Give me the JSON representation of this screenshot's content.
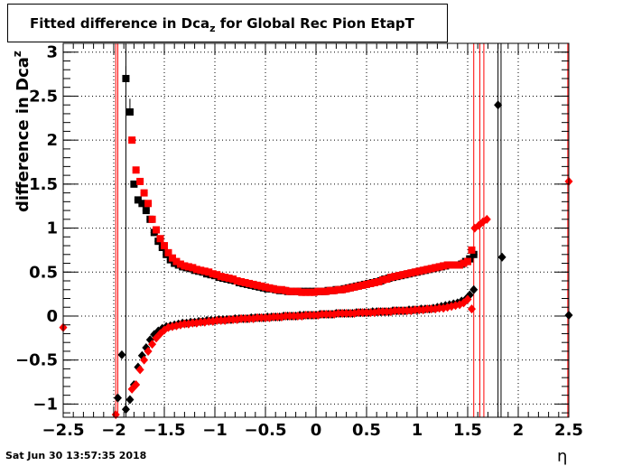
{
  "title": {
    "prefix": "Fitted difference in Dca",
    "subscript": "z",
    "suffix": " for Global Rec Pion EtapT"
  },
  "ylabel": {
    "main": "difference in Dca",
    "sup": "z"
  },
  "xlabel": "η",
  "datestamp": "Sat Jun 30 13:57:35 2018",
  "chart_data": {
    "type": "scatter",
    "title": "Fitted difference in Dca_z for Global Rec Pion EtapT",
    "xlabel": "η",
    "ylabel": "difference in Dca_z",
    "xlim": [
      -2.5,
      2.5
    ],
    "ylim": [
      -1.15,
      3.1
    ],
    "xticks": [
      -2.5,
      -2,
      -1.5,
      -1,
      -0.5,
      0,
      0.5,
      1,
      1.5,
      2,
      2.5
    ],
    "xtick_labels": [
      "−2.5",
      "−2",
      "−1.5",
      "−1",
      "−0.5",
      "0",
      "0.5",
      "1",
      "1.5",
      "2",
      "2.5"
    ],
    "yticks": [
      -1,
      -0.5,
      0,
      0.5,
      1,
      1.5,
      2,
      2.5,
      3
    ],
    "ytick_labels": [
      "−1",
      "−0.5",
      "0",
      "0.5",
      "1",
      "1.5",
      "2",
      "2.5",
      "3"
    ],
    "grid": true,
    "colors": {
      "black_series": "#000000",
      "red_series": "#ff0000"
    },
    "series": [
      {
        "marker": "square",
        "color": "#000000",
        "x": [
          -1.88,
          -1.84,
          -1.8,
          -1.76,
          -1.72,
          -1.68,
          -1.64,
          -1.6,
          -1.56,
          -1.52,
          -1.48,
          -1.44,
          -1.4,
          -1.36,
          -1.32,
          -1.28,
          -1.24,
          -1.2,
          -1.16,
          -1.12,
          -1.08,
          -1.04,
          -1.0,
          -0.96,
          -0.92,
          -0.88,
          -0.84,
          -0.8,
          -0.76,
          -0.72,
          -0.68,
          -0.64,
          -0.6,
          -0.56,
          -0.52,
          -0.48,
          -0.44,
          -0.4,
          -0.36,
          -0.32,
          -0.28,
          -0.24,
          -0.2,
          -0.16,
          -0.12,
          -0.08,
          -0.04,
          0.0,
          0.04,
          0.08,
          0.12,
          0.16,
          0.2,
          0.24,
          0.28,
          0.32,
          0.36,
          0.4,
          0.44,
          0.48,
          0.52,
          0.56,
          0.6,
          0.64,
          0.68,
          0.72,
          0.76,
          0.8,
          0.84,
          0.88,
          0.92,
          0.96,
          1.0,
          1.04,
          1.08,
          1.12,
          1.16,
          1.2,
          1.24,
          1.28,
          1.32,
          1.36,
          1.4,
          1.44,
          1.48,
          1.52,
          1.56
        ],
        "y": [
          2.7,
          2.32,
          1.5,
          1.32,
          1.28,
          1.2,
          1.1,
          0.95,
          0.85,
          0.78,
          0.7,
          0.64,
          0.6,
          0.58,
          0.56,
          0.55,
          0.54,
          0.52,
          0.51,
          0.5,
          0.48,
          0.47,
          0.46,
          0.44,
          0.43,
          0.42,
          0.41,
          0.4,
          0.38,
          0.37,
          0.36,
          0.35,
          0.34,
          0.33,
          0.32,
          0.31,
          0.31,
          0.3,
          0.29,
          0.29,
          0.28,
          0.28,
          0.28,
          0.28,
          0.28,
          0.28,
          0.28,
          0.28,
          0.28,
          0.28,
          0.29,
          0.29,
          0.3,
          0.3,
          0.31,
          0.32,
          0.33,
          0.34,
          0.35,
          0.36,
          0.37,
          0.38,
          0.39,
          0.4,
          0.42,
          0.43,
          0.44,
          0.45,
          0.46,
          0.47,
          0.48,
          0.49,
          0.5,
          0.51,
          0.52,
          0.53,
          0.54,
          0.55,
          0.56,
          0.57,
          0.58,
          0.58,
          0.58,
          0.59,
          0.62,
          0.65,
          0.7
        ],
        "yerr_high": [
          2.84,
          2.47,
          null,
          null,
          null,
          null,
          null,
          null,
          null,
          null,
          null,
          null,
          null,
          null,
          null,
          null,
          null,
          null,
          null,
          null,
          null,
          null,
          null,
          null,
          null,
          null,
          null,
          null,
          null,
          null,
          null,
          null,
          null,
          null,
          null,
          null,
          null,
          null,
          null,
          null,
          null,
          null,
          null,
          null,
          null,
          null,
          null,
          null,
          null,
          null,
          null,
          null,
          null,
          null,
          null,
          null,
          null,
          null,
          null,
          null,
          null,
          null,
          null,
          null,
          null,
          null,
          null,
          null,
          null,
          null,
          null,
          null,
          null,
          null,
          null,
          null,
          null,
          null,
          null,
          null,
          null,
          null,
          null,
          null,
          null,
          null,
          null
        ]
      },
      {
        "marker": "square",
        "color": "#ff0000",
        "x": [
          -1.82,
          -1.78,
          -1.74,
          -1.7,
          -1.66,
          -1.62,
          -1.58,
          -1.54,
          -1.5,
          -1.46,
          -1.42,
          -1.38,
          -1.34,
          -1.3,
          -1.26,
          -1.22,
          -1.18,
          -1.14,
          -1.1,
          -1.06,
          -1.02,
          -0.98,
          -0.94,
          -0.9,
          -0.86,
          -0.82,
          -0.78,
          -0.74,
          -0.7,
          -0.66,
          -0.62,
          -0.58,
          -0.54,
          -0.5,
          -0.46,
          -0.42,
          -0.38,
          -0.34,
          -0.3,
          -0.26,
          -0.22,
          -0.18,
          -0.14,
          -0.1,
          -0.06,
          -0.02,
          0.02,
          0.06,
          0.1,
          0.14,
          0.18,
          0.22,
          0.26,
          0.3,
          0.34,
          0.38,
          0.42,
          0.46,
          0.5,
          0.54,
          0.58,
          0.62,
          0.66,
          0.7,
          0.74,
          0.78,
          0.82,
          0.86,
          0.9,
          0.94,
          0.98,
          1.02,
          1.06,
          1.1,
          1.14,
          1.18,
          1.22,
          1.26,
          1.3,
          1.34,
          1.38,
          1.42,
          1.46,
          1.5,
          1.54
        ],
        "y": [
          2.0,
          1.66,
          1.53,
          1.4,
          1.28,
          1.1,
          0.98,
          0.88,
          0.8,
          0.72,
          0.66,
          0.62,
          0.59,
          0.57,
          0.56,
          0.55,
          0.53,
          0.52,
          0.51,
          0.5,
          0.48,
          0.47,
          0.45,
          0.44,
          0.43,
          0.42,
          0.4,
          0.39,
          0.38,
          0.37,
          0.36,
          0.35,
          0.34,
          0.33,
          0.32,
          0.31,
          0.3,
          0.3,
          0.29,
          0.28,
          0.28,
          0.28,
          0.27,
          0.27,
          0.27,
          0.27,
          0.28,
          0.28,
          0.28,
          0.29,
          0.29,
          0.3,
          0.3,
          0.31,
          0.32,
          0.33,
          0.34,
          0.35,
          0.36,
          0.37,
          0.38,
          0.39,
          0.41,
          0.42,
          0.44,
          0.45,
          0.46,
          0.47,
          0.48,
          0.49,
          0.5,
          0.51,
          0.52,
          0.53,
          0.54,
          0.55,
          0.56,
          0.57,
          0.58,
          0.58,
          0.58,
          0.58,
          0.6,
          0.62,
          0.75
        ]
      },
      {
        "marker": "diamond",
        "color": "#000000",
        "x": [
          -1.96,
          -1.92,
          -1.88,
          -1.84,
          -1.8,
          -1.76,
          -1.72,
          -1.68,
          -1.64,
          -1.6,
          -1.56,
          -1.52,
          -1.48,
          -1.44,
          -1.4,
          -1.36,
          -1.32,
          -1.28,
          -1.24,
          -1.2,
          -1.16,
          -1.12,
          -1.08,
          -1.04,
          -1.0,
          -0.96,
          -0.92,
          -0.88,
          -0.84,
          -0.8,
          -0.76,
          -0.72,
          -0.68,
          -0.64,
          -0.6,
          -0.56,
          -0.52,
          -0.48,
          -0.44,
          -0.4,
          -0.36,
          -0.32,
          -0.28,
          -0.24,
          -0.2,
          -0.16,
          -0.12,
          -0.08,
          -0.04,
          0.0,
          0.04,
          0.08,
          0.12,
          0.16,
          0.2,
          0.24,
          0.28,
          0.32,
          0.36,
          0.4,
          0.44,
          0.48,
          0.52,
          0.56,
          0.6,
          0.64,
          0.68,
          0.72,
          0.76,
          0.8,
          0.84,
          0.88,
          0.92,
          0.96,
          1.0,
          1.04,
          1.08,
          1.12,
          1.16,
          1.2,
          1.24,
          1.28,
          1.32,
          1.36,
          1.4,
          1.44,
          1.48,
          1.52,
          1.56,
          1.8,
          1.84,
          2.5
        ],
        "y": [
          -0.93,
          -0.44,
          -1.06,
          -0.95,
          -0.78,
          -0.58,
          -0.45,
          -0.36,
          -0.27,
          -0.21,
          -0.17,
          -0.14,
          -0.12,
          -0.11,
          -0.1,
          -0.09,
          -0.08,
          -0.08,
          -0.07,
          -0.07,
          -0.06,
          -0.06,
          -0.05,
          -0.05,
          -0.05,
          -0.04,
          -0.04,
          -0.04,
          -0.04,
          -0.03,
          -0.03,
          -0.03,
          -0.03,
          -0.02,
          -0.02,
          -0.02,
          -0.02,
          -0.01,
          -0.01,
          -0.01,
          -0.01,
          0.0,
          0.0,
          0.0,
          0.0,
          0.01,
          0.01,
          0.01,
          0.01,
          0.01,
          0.02,
          0.02,
          0.02,
          0.02,
          0.03,
          0.03,
          0.03,
          0.03,
          0.03,
          0.04,
          0.04,
          0.04,
          0.04,
          0.05,
          0.05,
          0.05,
          0.05,
          0.05,
          0.06,
          0.06,
          0.06,
          0.06,
          0.07,
          0.07,
          0.07,
          0.08,
          0.08,
          0.08,
          0.09,
          0.1,
          0.11,
          0.12,
          0.13,
          0.14,
          0.15,
          0.17,
          0.19,
          0.24,
          0.3,
          2.4,
          0.67,
          0.01
        ]
      },
      {
        "marker": "diamond",
        "color": "#ff0000",
        "x": [
          -2.5,
          -1.98,
          -1.82,
          -1.78,
          -1.74,
          -1.7,
          -1.66,
          -1.62,
          -1.58,
          -1.54,
          -1.5,
          -1.46,
          -1.42,
          -1.38,
          -1.34,
          -1.3,
          -1.26,
          -1.22,
          -1.18,
          -1.14,
          -1.1,
          -1.06,
          -1.02,
          -0.98,
          -0.94,
          -0.9,
          -0.86,
          -0.82,
          -0.78,
          -0.74,
          -0.7,
          -0.66,
          -0.62,
          -0.58,
          -0.54,
          -0.5,
          -0.46,
          -0.42,
          -0.38,
          -0.34,
          -0.3,
          -0.26,
          -0.22,
          -0.18,
          -0.14,
          -0.1,
          -0.06,
          -0.02,
          0.02,
          0.06,
          0.1,
          0.14,
          0.18,
          0.22,
          0.26,
          0.3,
          0.34,
          0.38,
          0.42,
          0.46,
          0.5,
          0.54,
          0.58,
          0.62,
          0.66,
          0.7,
          0.74,
          0.78,
          0.82,
          0.86,
          0.9,
          0.94,
          0.98,
          1.02,
          1.06,
          1.1,
          1.14,
          1.18,
          1.22,
          1.26,
          1.3,
          1.34,
          1.38,
          1.42,
          1.46,
          1.5,
          1.54,
          1.57,
          1.61,
          1.65,
          1.69,
          2.5
        ],
        "y": [
          -0.13,
          -1.12,
          -0.83,
          -0.78,
          -0.61,
          -0.5,
          -0.4,
          -0.32,
          -0.25,
          -0.2,
          -0.16,
          -0.13,
          -0.12,
          -0.11,
          -0.1,
          -0.09,
          -0.09,
          -0.08,
          -0.08,
          -0.07,
          -0.07,
          -0.06,
          -0.06,
          -0.05,
          -0.05,
          -0.05,
          -0.04,
          -0.04,
          -0.04,
          -0.03,
          -0.03,
          -0.03,
          -0.03,
          -0.02,
          -0.02,
          -0.02,
          -0.02,
          -0.01,
          -0.01,
          -0.01,
          0.0,
          0.0,
          0.0,
          0.0,
          0.0,
          0.01,
          0.01,
          0.01,
          0.01,
          0.02,
          0.02,
          0.02,
          0.02,
          0.03,
          0.03,
          0.03,
          0.03,
          0.03,
          0.04,
          0.04,
          0.04,
          0.04,
          0.04,
          0.05,
          0.05,
          0.05,
          0.05,
          0.06,
          0.06,
          0.06,
          0.06,
          0.06,
          0.07,
          0.07,
          0.07,
          0.08,
          0.08,
          0.08,
          0.09,
          0.09,
          0.1,
          0.11,
          0.12,
          0.13,
          0.15,
          0.19,
          0.08,
          1.0,
          1.03,
          1.07,
          1.1,
          1.53
        ]
      }
    ],
    "vertical_lines": [
      {
        "x": -1.98,
        "color": "#ff0000"
      },
      {
        "x": -1.96,
        "color": "#ff0000"
      },
      {
        "x": -1.88,
        "color": "#000000"
      },
      {
        "x": 1.56,
        "color": "#ff0000"
      },
      {
        "x": 1.62,
        "color": "#ff0000"
      },
      {
        "x": 1.66,
        "color": "#ff0000"
      },
      {
        "x": 1.8,
        "color": "#000000"
      },
      {
        "x": 1.83,
        "color": "#000000"
      },
      {
        "x": 2.49,
        "color": "#ff0000"
      },
      {
        "x": 2.5,
        "color": "#ff0000"
      }
    ]
  }
}
